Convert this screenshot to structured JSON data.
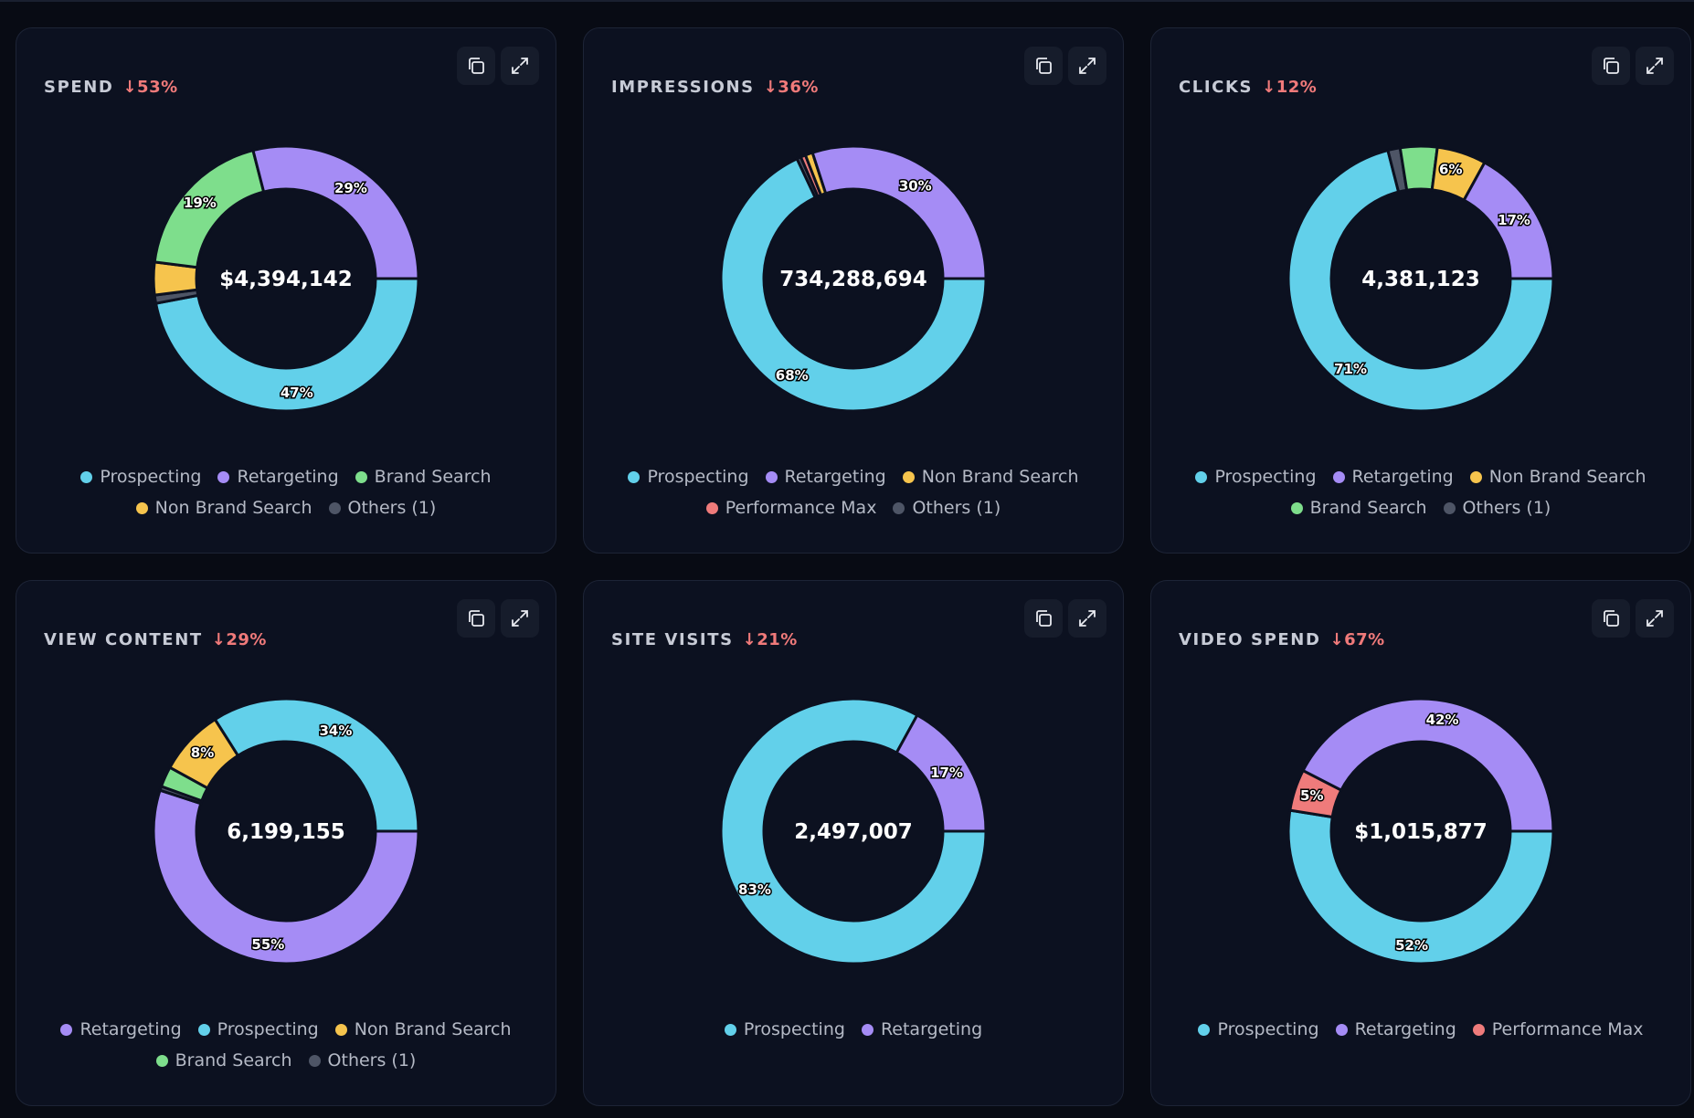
{
  "colors": {
    "Prospecting": "#62d0ea",
    "Retargeting": "#a58cf5",
    "Brand Search": "#7ede8c",
    "Non Brand Search": "#f6c44d",
    "Performance Max": "#ef7b7b",
    "Others (1)": "#4e5566"
  },
  "chart_data": [
    {
      "type": "pie",
      "title": "SPEND",
      "change": "↓53%",
      "total": "$4,394,142",
      "series": [
        {
          "name": "Prospecting",
          "value": 47,
          "label": "47%"
        },
        {
          "name": "Others (1)",
          "value": 1,
          "label": ""
        },
        {
          "name": "Non Brand Search",
          "value": 4,
          "label": ""
        },
        {
          "name": "Brand Search",
          "value": 19,
          "label": "19%"
        },
        {
          "name": "Retargeting",
          "value": 29,
          "label": "29%"
        }
      ],
      "legend": [
        "Prospecting",
        "Retargeting",
        "Brand Search",
        "Non Brand Search",
        "Others (1)"
      ]
    },
    {
      "type": "pie",
      "title": "IMPRESSIONS",
      "change": "↓36%",
      "total": "734,288,694",
      "series": [
        {
          "name": "Prospecting",
          "value": 68,
          "label": "68%"
        },
        {
          "name": "Others (1)",
          "value": 0.5,
          "label": ""
        },
        {
          "name": "Performance Max",
          "value": 0.6,
          "label": ""
        },
        {
          "name": "Non Brand Search",
          "value": 0.9,
          "label": ""
        },
        {
          "name": "Retargeting",
          "value": 30,
          "label": "30%"
        }
      ],
      "legend": [
        "Prospecting",
        "Retargeting",
        "Non Brand Search",
        "Performance Max",
        "Others (1)"
      ]
    },
    {
      "type": "pie",
      "title": "CLICKS",
      "change": "↓12%",
      "total": "4,381,123",
      "series": [
        {
          "name": "Prospecting",
          "value": 71,
          "label": "71%"
        },
        {
          "name": "Others (1)",
          "value": 1.5,
          "label": ""
        },
        {
          "name": "Brand Search",
          "value": 4.5,
          "label": ""
        },
        {
          "name": "Non Brand Search",
          "value": 6,
          "label": "6%"
        },
        {
          "name": "Retargeting",
          "value": 17,
          "label": "17%"
        }
      ],
      "legend": [
        "Prospecting",
        "Retargeting",
        "Non Brand Search",
        "Brand Search",
        "Others (1)"
      ]
    },
    {
      "type": "pie",
      "title": "VIEW CONTENT",
      "change": "↓29%",
      "total": "6,199,155",
      "series": [
        {
          "name": "Retargeting",
          "value": 55,
          "label": "55%"
        },
        {
          "name": "Others (1)",
          "value": 0.5,
          "label": ""
        },
        {
          "name": "Brand Search",
          "value": 2.5,
          "label": ""
        },
        {
          "name": "Non Brand Search",
          "value": 8,
          "label": "8%"
        },
        {
          "name": "Prospecting",
          "value": 34,
          "label": "34%"
        }
      ],
      "legend": [
        "Retargeting",
        "Prospecting",
        "Non Brand Search",
        "Brand Search",
        "Others (1)"
      ]
    },
    {
      "type": "pie",
      "title": "SITE VISITS",
      "change": "↓21%",
      "total": "2,497,007",
      "series": [
        {
          "name": "Prospecting",
          "value": 83,
          "label": "83%"
        },
        {
          "name": "Retargeting",
          "value": 17,
          "label": "17%"
        }
      ],
      "legend": [
        "Prospecting",
        "Retargeting"
      ]
    },
    {
      "type": "pie",
      "title": "VIDEO SPEND",
      "change": "↓67%",
      "total": "$1,015,877",
      "series": [
        {
          "name": "Prospecting",
          "value": 52,
          "label": "52%"
        },
        {
          "name": "Performance Max",
          "value": 5,
          "label": "5%"
        },
        {
          "name": "Retargeting",
          "value": 42,
          "label": "42%"
        }
      ],
      "legend": [
        "Prospecting",
        "Retargeting",
        "Performance Max"
      ]
    }
  ]
}
